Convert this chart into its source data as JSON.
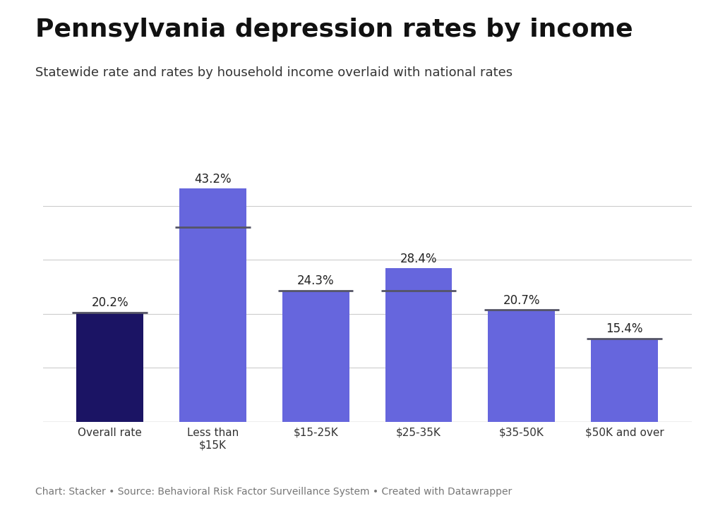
{
  "title": "Pennsylvania depression rates by income",
  "subtitle": "Statewide rate and rates by household income overlaid with national rates",
  "caption": "Chart: Stacker • Source: Behavioral Risk Factor Surveillance System • Created with Datawrapper",
  "categories": [
    "Overall rate",
    "Less than\n$15K",
    "$15-25K",
    "$25-35K",
    "$35-50K",
    "$50K and over"
  ],
  "values": [
    20.2,
    43.2,
    24.3,
    28.4,
    20.7,
    15.4
  ],
  "bar_colors": [
    "#1b1464",
    "#6666dd",
    "#6666dd",
    "#6666dd",
    "#6666dd",
    "#6666dd"
  ],
  "national_overlay": [
    20.2,
    36.0,
    24.3,
    24.3,
    20.7,
    15.4
  ],
  "background_color": "#ffffff",
  "bar_width": 0.65,
  "ylim": [
    0,
    48
  ],
  "title_fontsize": 26,
  "subtitle_fontsize": 13,
  "label_fontsize": 12,
  "tick_fontsize": 11,
  "caption_fontsize": 10,
  "gridline_values": [
    10,
    20,
    30,
    40
  ],
  "gridline_color": "#cccccc",
  "line_color": "#555566",
  "line_lw": 2.0
}
